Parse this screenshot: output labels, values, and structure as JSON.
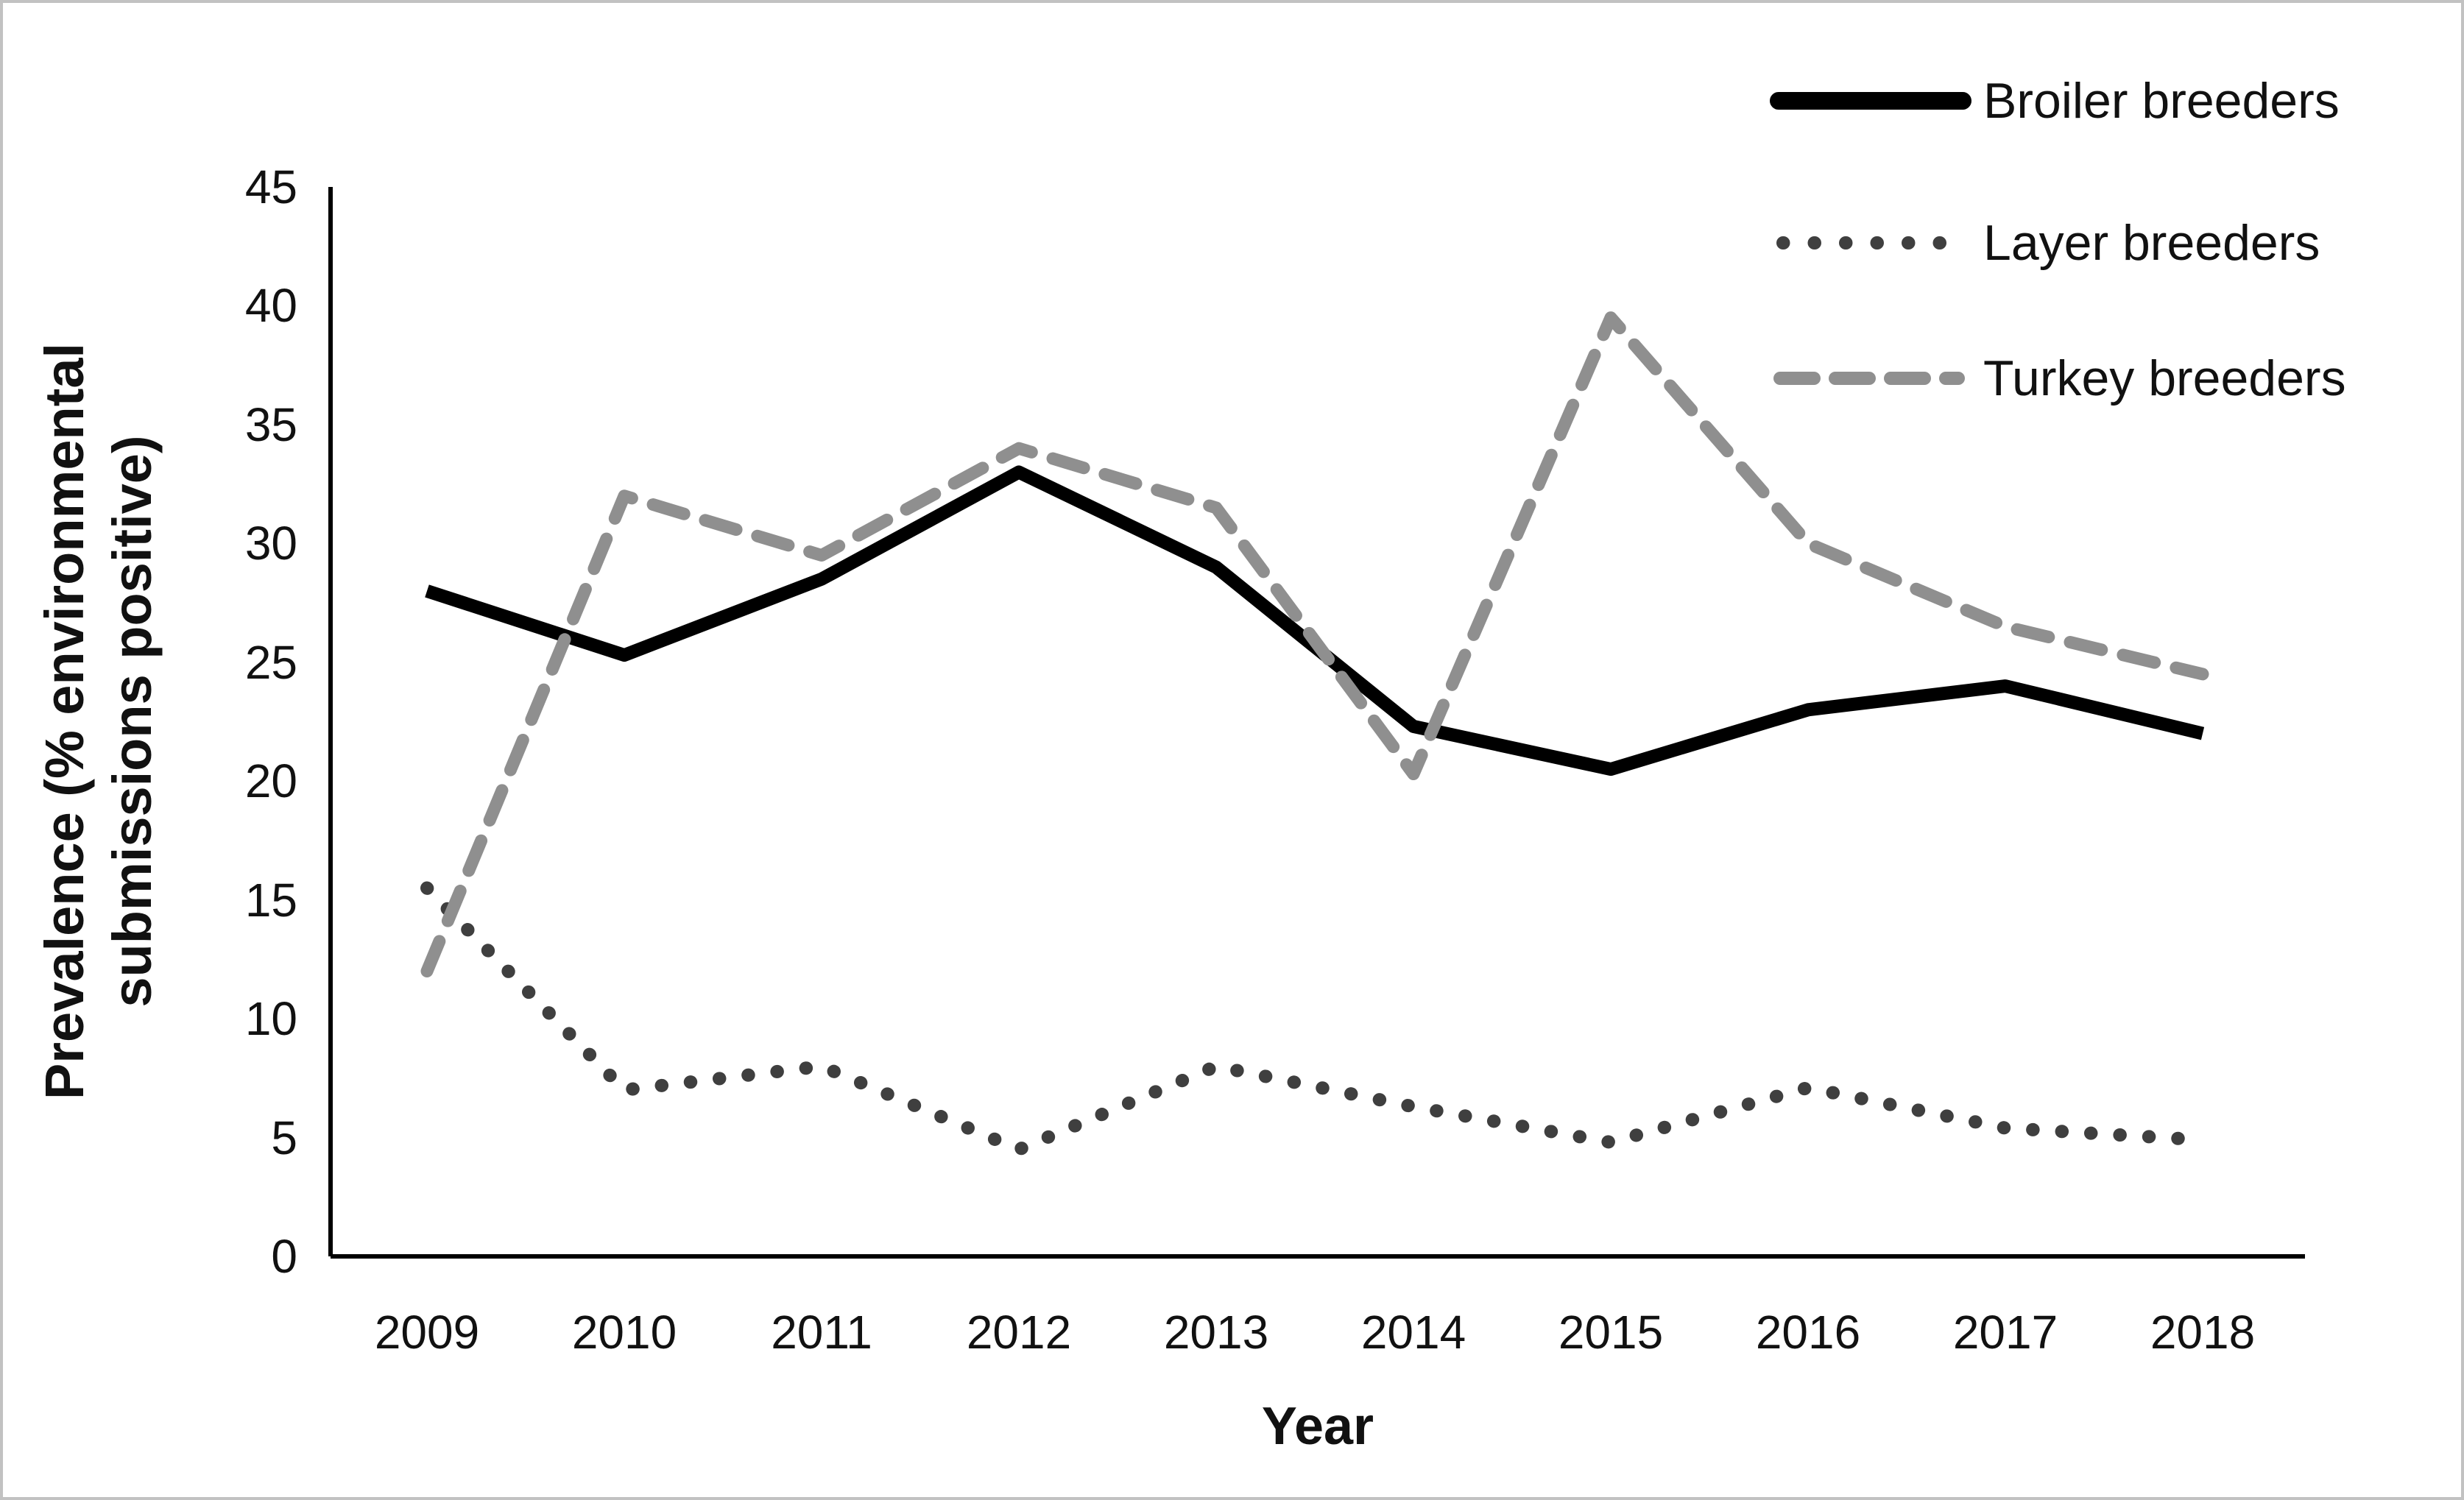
{
  "figure": {
    "background": "#ffffff",
    "border_color": "#c2c2c2"
  },
  "chart_data": {
    "type": "line",
    "title": "",
    "xlabel": "Year",
    "ylabel": "Prevalence (% environmental submissions positive)",
    "ylabel_lines": [
      "Prevalence (% environmental",
      "submissions positive)"
    ],
    "categories": [
      "2009",
      "2010",
      "2011",
      "2012",
      "2013",
      "2014",
      "2015",
      "2016",
      "2017",
      "2018"
    ],
    "yticks": [
      0,
      5,
      10,
      15,
      20,
      25,
      30,
      35,
      40,
      45
    ],
    "ylim": [
      0,
      45
    ],
    "grid": false,
    "legend_position": "top-right",
    "axis_color": "#000000",
    "series": [
      {
        "name": "Broiler breeders",
        "style": "solid",
        "color": "#000000",
        "values": [
          28,
          25.3,
          28.5,
          33,
          29,
          22.3,
          20.5,
          23,
          24,
          22
        ]
      },
      {
        "name": "Layer breeders",
        "style": "dotted",
        "color": "#3f3f3f",
        "values": [
          15.5,
          7,
          8,
          4.5,
          8,
          6.3,
          4.8,
          7.1,
          5.4,
          4.9
        ]
      },
      {
        "name": "Turkey breeders",
        "style": "dashed",
        "color": "#8f8f8f",
        "values": [
          12,
          32,
          29.5,
          34,
          31.5,
          20.3,
          39.5,
          30,
          26.5,
          24.5
        ]
      }
    ]
  }
}
